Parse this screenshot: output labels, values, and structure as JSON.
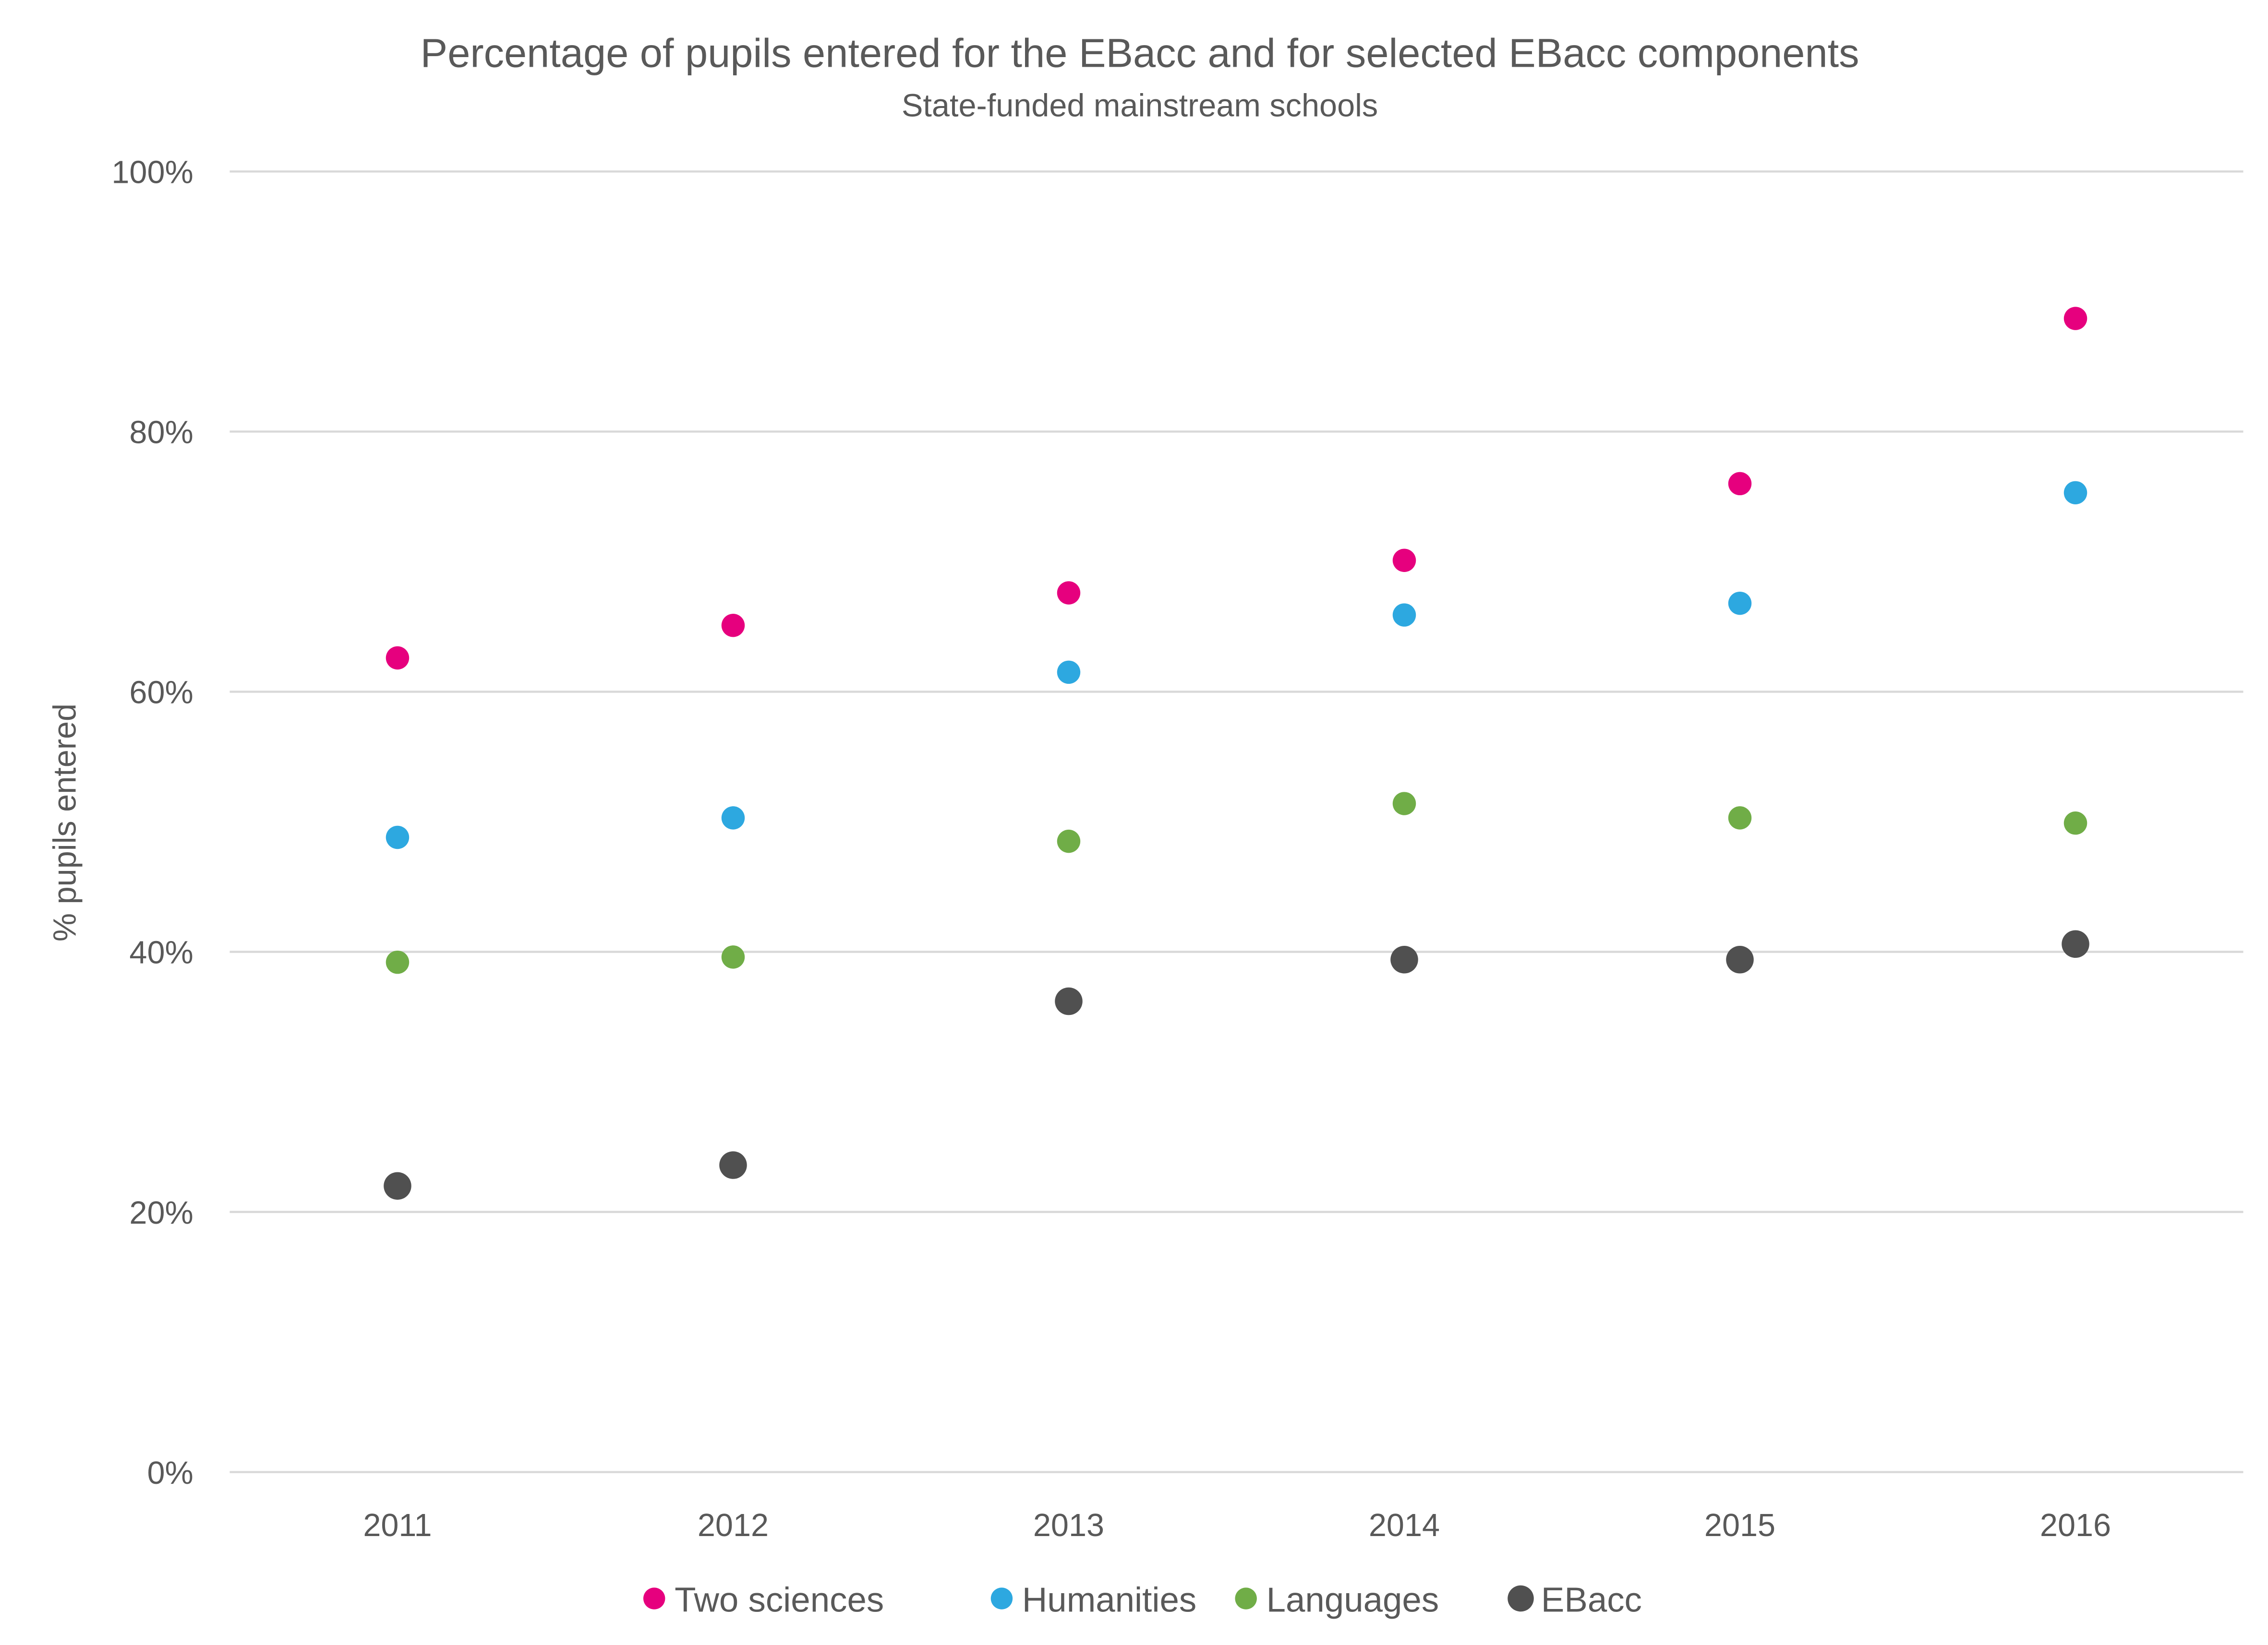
{
  "chart_data": {
    "type": "scatter",
    "title": "Percentage of pupils entered for the EBacc and for selected EBacc components",
    "subtitle": "State-funded mainstream schools",
    "xlabel": "",
    "ylabel": "% pupils entered",
    "categories": [
      "2011",
      "2012",
      "2013",
      "2014",
      "2015",
      "2016"
    ],
    "ylim": [
      0,
      100
    ],
    "yticks": [
      "0%",
      "20%",
      "40%",
      "60%",
      "80%",
      "100%"
    ],
    "ytick_values": [
      0,
      20,
      40,
      60,
      80,
      100
    ],
    "grid": true,
    "legend_position": "bottom",
    "series": [
      {
        "name": "Two sciences",
        "color": "#E6007E",
        "values": [
          62.6,
          65.1,
          67.6,
          70.1,
          76.0,
          88.7
        ]
      },
      {
        "name": "Humanities",
        "color": "#2DA8E0",
        "values": [
          48.8,
          50.3,
          61.5,
          65.9,
          66.8,
          75.3
        ]
      },
      {
        "name": "Languages",
        "color": "#70AD47",
        "values": [
          39.2,
          39.6,
          48.5,
          51.4,
          50.3,
          49.9
        ]
      },
      {
        "name": "EBacc",
        "color": "#505050",
        "values": [
          22.0,
          23.6,
          36.2,
          39.4,
          39.4,
          40.6
        ]
      }
    ]
  }
}
